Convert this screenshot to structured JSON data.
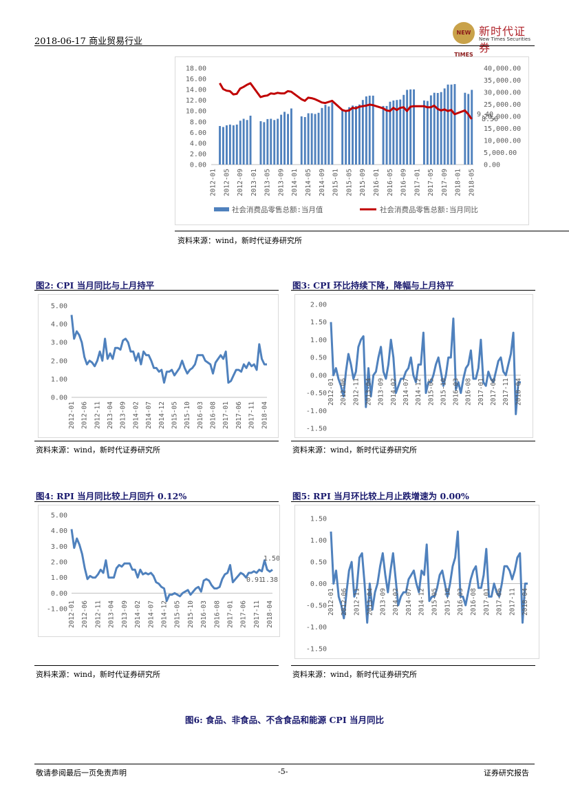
{
  "header": {
    "date_industry": "2018-06-17  商业贸易行业",
    "logo_cn": "新时代证券",
    "logo_en": "New Times Securities",
    "logo_mark": "NEW TIMES"
  },
  "charts": [
    {
      "id": "retail",
      "type": "bar+line",
      "y_left_ticks": [
        "18.00",
        "16.00",
        "14.00",
        "12.00",
        "10.00",
        "8.00",
        "6.00",
        "4.00",
        "2.00",
        "0.00"
      ],
      "y_right_ticks": [
        "40,000.00",
        "35,000.00",
        "30,000.00",
        "25,000.00",
        "20,000.00",
        "15,000.00",
        "10,000.00",
        "5,000.00",
        "0.00"
      ],
      "x_ticks": [
        "2012-01",
        "2012-05",
        "2012-09",
        "2013-01",
        "2013-05",
        "2013-09",
        "2014-01",
        "2014-05",
        "2014-09",
        "2015-01",
        "2015-05",
        "2015-09",
        "2016-01",
        "2016-05",
        "2016-09",
        "2017-01",
        "2017-05",
        "2017-09",
        "2018-01",
        "2018-05"
      ],
      "annotations": [
        "9.40",
        "8.50"
      ],
      "legend": [
        "社会消费品零售总额:当月值",
        "社会消费品零售总额:当月同比"
      ],
      "colors": {
        "bar": "#4f81bd",
        "line": "#c00000"
      }
    },
    {
      "id": "cpi-yoy",
      "type": "line",
      "y_ticks": [
        "5.00",
        "4.00",
        "3.00",
        "2.00",
        "1.00",
        "0.00"
      ],
      "x_ticks": [
        "2012-01",
        "2012-06",
        "2012-11",
        "2013-04",
        "2013-09",
        "2014-02",
        "2014-07",
        "2014-12",
        "2015-05",
        "2015-10",
        "2016-03",
        "2016-08",
        "2017-01",
        "2017-06",
        "2017-11",
        "2018-04"
      ]
    },
    {
      "id": "cpi-mom",
      "type": "line",
      "y_ticks": [
        "2.00",
        "1.50",
        "1.00",
        "0.50",
        "0.00",
        "-0.50",
        "-1.00",
        "-1.50"
      ],
      "x_ticks": [
        "2012-01",
        "2012-06",
        "2012-11",
        "2013-04",
        "2013-09",
        "2014-02",
        "2014-07",
        "2014-12",
        "2015-05",
        "2015-10",
        "2016-03",
        "2016-08",
        "2017-01",
        "2017-06",
        "2017-11",
        "2018-04"
      ]
    },
    {
      "id": "rpi-yoy",
      "type": "line",
      "y_ticks": [
        "5.00",
        "4.00",
        "3.00",
        "2.00",
        "1.00",
        "0.00",
        "-1.00"
      ],
      "x_ticks": [
        "2012-01",
        "2012-06",
        "2012-11",
        "2013-04",
        "2013-09",
        "2014-02",
        "2014-07",
        "2014-12",
        "2015-05",
        "2015-10",
        "2016-03",
        "2016-08",
        "2017-01",
        "2017-06",
        "2017-11",
        "2018-04"
      ],
      "annotations": [
        "1.50",
        "0.91",
        "1.38"
      ]
    },
    {
      "id": "rpi-mom",
      "type": "line",
      "y_ticks": [
        "1.50",
        "1.00",
        "0.50",
        "0.00",
        "-0.50",
        "-1.00",
        "-1.50"
      ],
      "x_ticks": [
        "2012-01",
        "2012-06",
        "2012-11",
        "2013-04",
        "2013-09",
        "2014-02",
        "2014-07",
        "2014-12",
        "2015-05",
        "2015-10",
        "2016-03",
        "2016-08",
        "2017-01",
        "2017-06",
        "2017-11",
        "2018-04"
      ]
    }
  ],
  "chart_data": [
    {
      "type": "bar",
      "title": "",
      "x": [
        "2012-01",
        "2012-02",
        "2012-03",
        "2012-04",
        "2012-05",
        "2012-06",
        "2012-07",
        "2012-08",
        "2012-09",
        "2012-10",
        "2012-11",
        "2012-12",
        "2013-01",
        "2013-02",
        "2013-03",
        "2013-04",
        "2013-05",
        "2013-06",
        "2013-07",
        "2013-08",
        "2013-09",
        "2013-10",
        "2013-11",
        "2013-12",
        "2014-01",
        "2014-02",
        "2014-03",
        "2014-04",
        "2014-05",
        "2014-06",
        "2014-07",
        "2014-08",
        "2014-09",
        "2014-10",
        "2014-11",
        "2014-12",
        "2015-01",
        "2015-02",
        "2015-03",
        "2015-04",
        "2015-05",
        "2015-06",
        "2015-07",
        "2015-08",
        "2015-09",
        "2015-10",
        "2015-11",
        "2015-12",
        "2016-01",
        "2016-02",
        "2016-03",
        "2016-04",
        "2016-05",
        "2016-06",
        "2016-07",
        "2016-08",
        "2016-09",
        "2016-10",
        "2016-11",
        "2016-12",
        "2017-01",
        "2017-02",
        "2017-03",
        "2017-04",
        "2017-05",
        "2017-06",
        "2017-07",
        "2017-08",
        "2017-09",
        "2017-10",
        "2017-11",
        "2017-12",
        "2018-01",
        "2018-02",
        "2018-03",
        "2018-04",
        "2018-05"
      ],
      "series": [
        {
          "name": "社会消费品零售总额:当月值",
          "axis": "right",
          "values": [
            null,
            null,
            16000,
            15600,
            16300,
            16600,
            16300,
            16600,
            18200,
            19000,
            18500,
            20300,
            null,
            null,
            18000,
            17600,
            18900,
            19000,
            18500,
            19000,
            20700,
            21900,
            21000,
            23300,
            null,
            null,
            20000,
            19700,
            21300,
            21300,
            21000,
            21500,
            23500,
            24800,
            24100,
            25800,
            null,
            null,
            22500,
            22000,
            23800,
            24500,
            24300,
            24900,
            26800,
            28300,
            28600,
            28600,
            null,
            null,
            24300,
            24300,
            26100,
            26600,
            26800,
            27000,
            28900,
            31000,
            31200,
            31200,
            null,
            null,
            26600,
            26400,
            28700,
            29800,
            29700,
            30100,
            31600,
            33200,
            33200,
            33400,
            null,
            null,
            29800,
            29300,
            31000
          ]
        },
        {
          "name": "社会消费品零售总额:当月同比",
          "axis": "left",
          "values": [
            null,
            null,
            15.2,
            14.1,
            13.8,
            13.7,
            13.1,
            13.2,
            14.2,
            14.5,
            14.9,
            15.2,
            null,
            null,
            12.6,
            12.8,
            12.9,
            13.3,
            13.2,
            13.4,
            13.3,
            13.3,
            13.7,
            13.6,
            null,
            null,
            12.2,
            11.9,
            12.5,
            12.4,
            12.2,
            11.9,
            11.6,
            11.5,
            11.7,
            11.9,
            null,
            null,
            10.2,
            10.0,
            10.1,
            10.6,
            10.5,
            10.8,
            10.9,
            11.0,
            11.2,
            11.1,
            null,
            null,
            10.5,
            10.1,
            10.0,
            10.6,
            10.2,
            10.6,
            10.7,
            10.0,
            10.8,
            10.9,
            null,
            null,
            10.9,
            10.7,
            10.7,
            11.0,
            10.4,
            10.1,
            10.3,
            10.0,
            10.2,
            9.4,
            null,
            null,
            10.1,
            9.4,
            8.5
          ]
        }
      ],
      "ylim_left": [
        0,
        18
      ],
      "ylim_right": [
        0,
        40000
      ]
    },
    {
      "type": "line",
      "title": "CPI当月同比与上月持平",
      "x_start": "2012-01",
      "x_end": "2018-05",
      "series": [
        {
          "values": [
            4.5,
            3.2,
            3.6,
            3.4,
            3.0,
            2.2,
            1.8,
            2.0,
            1.9,
            1.7,
            2.0,
            2.5,
            2.0,
            3.2,
            2.1,
            2.4,
            2.1,
            2.7,
            2.7,
            2.6,
            3.1,
            3.2,
            3.0,
            2.5,
            2.5,
            2.0,
            2.4,
            1.8,
            2.5,
            2.3,
            2.3,
            2.0,
            1.6,
            1.6,
            1.4,
            1.5,
            0.8,
            1.4,
            1.4,
            1.5,
            1.2,
            1.4,
            1.6,
            2.0,
            1.6,
            1.3,
            1.5,
            1.6,
            1.8,
            2.3,
            2.3,
            2.3,
            2.0,
            1.9,
            1.8,
            1.3,
            1.9,
            2.1,
            2.3,
            2.1,
            2.5,
            0.8,
            0.9,
            1.2,
            1.5,
            1.5,
            1.4,
            1.8,
            1.6,
            1.9,
            1.7,
            1.8,
            1.5,
            2.9,
            2.1,
            1.8,
            1.8
          ]
        }
      ],
      "ylim": [
        0,
        5
      ]
    },
    {
      "type": "line",
      "title": "CPI环比持续下降，降幅与上月持平",
      "x_start": "2012-01",
      "x_end": "2018-05",
      "series": [
        {
          "values": [
            1.5,
            0.0,
            0.2,
            -0.1,
            -0.3,
            -0.6,
            0.1,
            0.6,
            0.3,
            -0.1,
            0.1,
            0.8,
            1.0,
            1.1,
            -0.9,
            0.2,
            -0.6,
            0.0,
            0.1,
            0.5,
            0.8,
            0.1,
            -0.1,
            0.3,
            1.0,
            0.5,
            -0.5,
            -0.3,
            -0.1,
            -0.1,
            0.1,
            0.2,
            0.5,
            0.0,
            -0.2,
            0.3,
            0.3,
            1.2,
            -0.5,
            -0.2,
            -0.2,
            0.0,
            0.3,
            0.5,
            0.1,
            -0.3,
            0.0,
            0.5,
            0.5,
            1.6,
            -0.4,
            -0.2,
            -0.5,
            -0.1,
            0.2,
            0.3,
            0.7,
            -0.1,
            -0.1,
            0.2,
            1.0,
            -0.2,
            -0.3,
            0.1,
            -0.1,
            -0.2,
            0.1,
            0.4,
            0.5,
            0.1,
            0.0,
            0.3,
            0.6,
            1.2,
            -1.1,
            -0.2,
            -0.2
          ]
        }
      ],
      "ylim": [
        -1.5,
        2
      ]
    },
    {
      "type": "line",
      "title": "RPI当月同比较上月回升0.12%",
      "x_start": "2012-01",
      "x_end": "2018-05",
      "series": [
        {
          "values": [
            4.1,
            2.9,
            3.5,
            3.1,
            2.5,
            1.6,
            0.9,
            1.1,
            1.0,
            1.0,
            1.2,
            1.5,
            1.3,
            2.1,
            1.0,
            1.0,
            1.0,
            1.6,
            1.8,
            1.7,
            1.9,
            1.9,
            1.9,
            1.5,
            1.5,
            1.0,
            1.5,
            1.2,
            1.3,
            1.2,
            1.3,
            1.1,
            0.7,
            0.6,
            0.4,
            0.3,
            -0.5,
            -0.1,
            -0.1,
            0.0,
            -0.1,
            -0.2,
            0.0,
            0.1,
            0.2,
            -0.1,
            0.1,
            0.3,
            0.4,
            0.1,
            0.8,
            0.9,
            0.8,
            0.5,
            0.3,
            0.3,
            0.4,
            0.9,
            1.2,
            1.3,
            1.8,
            0.7,
            0.9,
            1.1,
            1.3,
            1.2,
            1.0,
            1.3,
            1.3,
            1.4,
            1.3,
            1.5,
            1.4,
            2.1,
            1.5,
            1.38,
            1.5
          ]
        }
      ],
      "annotations": [
        1.5,
        0.91,
        1.38
      ],
      "ylim": [
        -1,
        5
      ]
    },
    {
      "type": "line",
      "title": "RPI当月环比较上月止跌增速为0.00%",
      "x_start": "2012-01",
      "x_end": "2018-05",
      "series": [
        {
          "values": [
            1.2,
            0.0,
            0.3,
            -0.3,
            -0.5,
            -0.8,
            -0.2,
            0.3,
            0.5,
            -0.3,
            -0.1,
            0.6,
            0.7,
            0.0,
            -0.9,
            0.0,
            -0.6,
            -0.2,
            0.0,
            0.4,
            0.7,
            0.2,
            -0.2,
            0.3,
            0.7,
            0.1,
            -0.5,
            -0.3,
            -0.2,
            -0.2,
            0.1,
            0.2,
            0.3,
            0.0,
            -0.2,
            0.3,
            0.2,
            0.9,
            -0.4,
            -0.3,
            -0.3,
            -0.1,
            0.2,
            0.3,
            0.0,
            -0.3,
            0.0,
            0.4,
            0.6,
            1.2,
            -0.3,
            -0.3,
            -0.5,
            -0.2,
            0.1,
            0.3,
            0.4,
            -0.1,
            -0.1,
            0.2,
            0.8,
            -0.3,
            -0.3,
            0.0,
            -0.2,
            -0.3,
            0.0,
            0.4,
            0.4,
            0.3,
            0.1,
            0.3,
            0.6,
            0.7,
            -0.9,
            0.0,
            0.0
          ]
        }
      ],
      "ylim": [
        -1.5,
        1.5
      ]
    }
  ],
  "figures": {
    "fig2_title": "图2:    CPI 当月同比与上月持平",
    "fig3_title": "图3:    CPI 环比持续下降，降幅与上月持平",
    "fig4_title": "图4:    RPI 当月同比较上月回升 0.12%",
    "fig5_title": "图5:    RPI 当月环比较上月止跌增速为 0.00%",
    "fig6_title": "图6:    食品、非食品、不含食品和能源 CPI 当月同比",
    "source": "资料来源：wind，新时代证券研究所"
  },
  "footer": {
    "left": "敬请参阅最后一页免责声明",
    "page": "-5-",
    "right": "证券研究报告"
  }
}
